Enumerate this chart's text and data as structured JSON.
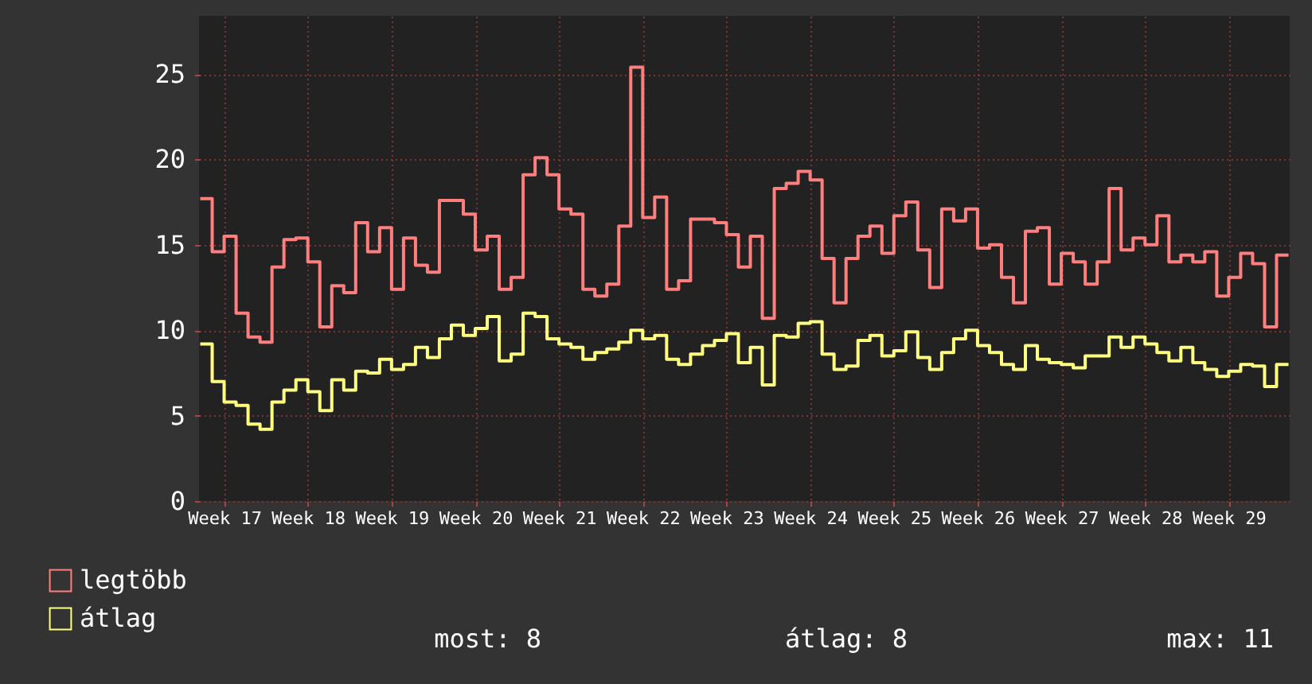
{
  "chart_data": {
    "type": "step",
    "categories": [
      null,
      null,
      "Week 17",
      null,
      null,
      null,
      null,
      null,
      null,
      "Week 18",
      null,
      null,
      null,
      null,
      null,
      null,
      "Week 19",
      null,
      null,
      null,
      null,
      null,
      null,
      "Week 20",
      null,
      null,
      null,
      null,
      null,
      null,
      "Week 21",
      null,
      null,
      null,
      null,
      null,
      null,
      "Week 22",
      null,
      null,
      null,
      null,
      null,
      null,
      "Week 23",
      null,
      null,
      null,
      null,
      null,
      null,
      "Week 24",
      null,
      null,
      null,
      null,
      null,
      null,
      "Week 25",
      null,
      null,
      null,
      null,
      null,
      null,
      "Week 26",
      null,
      null,
      null,
      null,
      null,
      null,
      "Week 27",
      null,
      null,
      null,
      null,
      null,
      null,
      "Week 28",
      null,
      null,
      null,
      null,
      null,
      null,
      "Week 29",
      null,
      null,
      null,
      null,
      null
    ],
    "series": [
      {
        "name": "legtöbb",
        "color": "#ff7f7f",
        "values": [
          17.7,
          14.6,
          15.5,
          11.0,
          9.6,
          9.3,
          13.7,
          15.3,
          15.4,
          14.0,
          10.2,
          12.6,
          12.2,
          16.3,
          14.6,
          16.0,
          12.4,
          15.4,
          13.8,
          13.4,
          17.6,
          17.6,
          16.8,
          14.7,
          15.5,
          12.4,
          13.1,
          19.1,
          20.1,
          19.1,
          17.1,
          16.8,
          12.4,
          12.0,
          12.7,
          16.1,
          25.4,
          16.6,
          17.8,
          12.4,
          12.9,
          16.5,
          16.5,
          16.3,
          15.6,
          13.7,
          15.5,
          10.7,
          18.3,
          18.6,
          19.3,
          18.8,
          14.2,
          11.6,
          14.2,
          15.5,
          16.1,
          14.5,
          16.7,
          17.5,
          14.7,
          12.5,
          17.1,
          16.4,
          17.1,
          14.8,
          15.0,
          13.1,
          11.6,
          15.8,
          16.0,
          12.7,
          14.5,
          14.0,
          12.7,
          14.0,
          18.3,
          14.7,
          15.4,
          15.0,
          16.7,
          14.0,
          14.4,
          14.0,
          14.6,
          12.0,
          13.1,
          14.5,
          13.9,
          10.2,
          14.4,
          14.4
        ]
      },
      {
        "name": "átlag",
        "color": "#ffff80",
        "values": [
          9.2,
          7.0,
          5.8,
          5.6,
          4.5,
          4.2,
          5.8,
          6.5,
          7.1,
          6.4,
          5.3,
          7.1,
          6.5,
          7.6,
          7.5,
          8.3,
          7.7,
          8.0,
          9.0,
          8.4,
          9.5,
          10.3,
          9.7,
          10.1,
          10.8,
          8.2,
          8.6,
          11.0,
          10.8,
          9.5,
          9.2,
          9.0,
          8.3,
          8.7,
          8.9,
          9.3,
          10.0,
          9.5,
          9.7,
          8.3,
          8.0,
          8.6,
          9.1,
          9.4,
          9.8,
          8.1,
          9.0,
          6.8,
          9.7,
          9.6,
          10.4,
          10.5,
          8.6,
          7.7,
          7.9,
          9.4,
          9.7,
          8.5,
          8.8,
          9.9,
          8.4,
          7.7,
          8.7,
          9.5,
          10.0,
          9.1,
          8.7,
          8.0,
          7.7,
          9.1,
          8.3,
          8.1,
          8.0,
          7.8,
          8.5,
          8.5,
          9.6,
          9.0,
          9.6,
          9.2,
          8.7,
          8.2,
          9.0,
          8.1,
          7.7,
          7.3,
          7.6,
          8.0,
          7.9,
          6.7,
          8.0,
          8.0
        ]
      }
    ],
    "ylim": [
      0,
      28.4
    ],
    "yticks": [
      0,
      5,
      10,
      15,
      20,
      25
    ],
    "grid": true,
    "legend": "bottom left",
    "annotations": [
      "most: 8",
      "átlag: 8",
      "max: 11"
    ]
  }
}
